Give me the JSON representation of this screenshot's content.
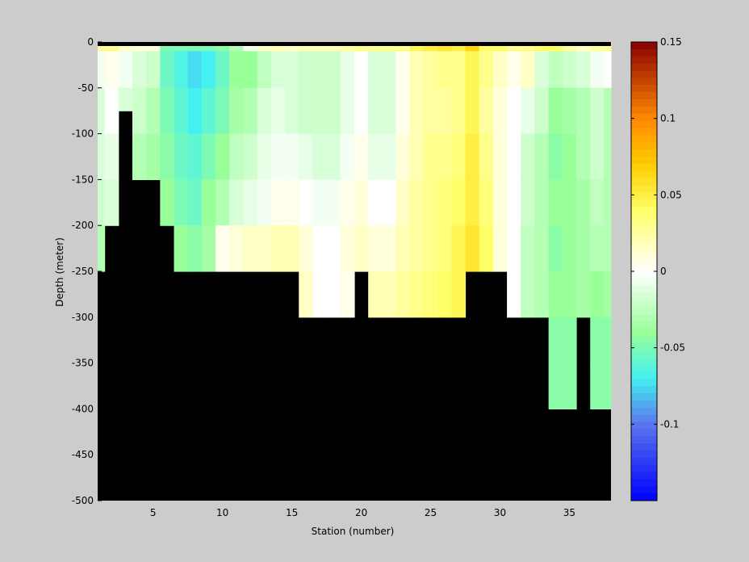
{
  "chart_data": {
    "type": "heatmap",
    "title": "",
    "xlabel": "Station (number)",
    "ylabel": "Depth (meter)",
    "xlim": [
      1,
      38
    ],
    "ylim": [
      -500,
      0
    ],
    "x_ticks": [
      5,
      10,
      15,
      20,
      25,
      30,
      35
    ],
    "y_ticks": [
      0,
      -50,
      -100,
      -150,
      -200,
      -250,
      -300,
      -350,
      -400,
      -450,
      -500
    ],
    "stations": [
      1,
      2,
      3,
      4,
      5,
      6,
      7,
      8,
      9,
      10,
      11,
      12,
      13,
      14,
      15,
      16,
      17,
      18,
      19,
      20,
      21,
      22,
      23,
      24,
      25,
      26,
      27,
      28,
      29,
      30,
      31,
      32,
      33,
      34,
      35,
      36,
      37,
      38
    ],
    "depth_levels": [
      0,
      -10,
      -50,
      -100,
      -150,
      -200,
      -250,
      -300,
      -350,
      -400
    ],
    "bottom_depth": [
      -250,
      -200,
      -75,
      -150,
      -150,
      -250,
      -250,
      -250,
      -250,
      -250,
      -250,
      -250,
      -250,
      -250,
      -300,
      -300,
      -300,
      -300,
      -300,
      -250,
      -300,
      -300,
      -300,
      -300,
      -300,
      -300,
      -300,
      -250,
      -250,
      -250,
      -300,
      -300,
      -300,
      -400,
      -400,
      -300,
      -400,
      -400
    ],
    "values": [
      [
        0.025,
        -0.005,
        -0.015,
        -0.015,
        -0.02,
        -0.03
      ],
      [
        0.03,
        0.005,
        0.0,
        -0.01,
        -0.015
      ],
      [
        0.015,
        -0.005,
        -0.015
      ],
      [
        0.01,
        -0.015,
        -0.02,
        -0.03
      ],
      [
        0.01,
        -0.02,
        -0.03,
        -0.035
      ],
      [
        -0.05,
        -0.055,
        -0.05,
        -0.045,
        -0.04
      ],
      [
        -0.05,
        -0.065,
        -0.06,
        -0.055,
        -0.05,
        -0.04
      ],
      [
        -0.05,
        -0.075,
        -0.07,
        -0.06,
        -0.055,
        -0.045
      ],
      [
        -0.05,
        -0.07,
        -0.06,
        -0.05,
        -0.04,
        -0.035
      ],
      [
        -0.045,
        -0.055,
        -0.05,
        -0.04,
        -0.03,
        0.005
      ],
      [
        -0.03,
        -0.04,
        -0.035,
        -0.025,
        -0.015,
        0.01
      ],
      [
        -0.005,
        -0.04,
        -0.03,
        -0.02,
        -0.01,
        0.015
      ],
      [
        0.015,
        -0.025,
        -0.015,
        -0.01,
        -0.005,
        0.015
      ],
      [
        0.02,
        -0.015,
        -0.01,
        -0.005,
        0.005,
        0.02
      ],
      [
        0.015,
        -0.015,
        -0.015,
        -0.005,
        0.005,
        0.02
      ],
      [
        0.02,
        -0.02,
        -0.02,
        -0.01,
        0.0,
        0.01,
        0.015
      ],
      [
        0.02,
        -0.02,
        -0.02,
        -0.015,
        -0.005,
        0.0,
        0.0
      ],
      [
        0.02,
        -0.02,
        -0.02,
        -0.015,
        -0.005,
        0.0,
        0.0
      ],
      [
        0.025,
        -0.01,
        -0.01,
        -0.005,
        0.005,
        0.01,
        0.005
      ],
      [
        0.03,
        0.0,
        0.0,
        0.005,
        0.01,
        0.015
      ],
      [
        0.03,
        -0.015,
        -0.015,
        -0.01,
        0.0,
        0.01,
        0.02
      ],
      [
        0.03,
        -0.015,
        -0.015,
        -0.01,
        0.0,
        0.01,
        0.02
      ],
      [
        0.03,
        0.005,
        0.005,
        0.01,
        0.015,
        0.02,
        0.025
      ],
      [
        0.045,
        0.02,
        0.02,
        0.02,
        0.025,
        0.025,
        0.03
      ],
      [
        0.05,
        0.025,
        0.025,
        0.03,
        0.03,
        0.03,
        0.035
      ],
      [
        0.055,
        0.03,
        0.025,
        0.03,
        0.035,
        0.035,
        0.04
      ],
      [
        0.05,
        0.03,
        0.03,
        0.035,
        0.04,
        0.045,
        0.045
      ],
      [
        0.065,
        0.045,
        0.045,
        0.05,
        0.05,
        0.055
      ],
      [
        0.04,
        0.03,
        0.025,
        0.03,
        0.035,
        0.04
      ],
      [
        0.04,
        0.015,
        0.01,
        0.01,
        0.01,
        0.01
      ],
      [
        0.03,
        0.005,
        0.0,
        0.0,
        0.0,
        0.0,
        0.0
      ],
      [
        0.03,
        0.015,
        -0.01,
        -0.02,
        -0.02,
        -0.025,
        -0.025
      ],
      [
        0.04,
        -0.015,
        -0.02,
        -0.03,
        -0.03,
        -0.03,
        -0.03
      ],
      [
        0.04,
        -0.025,
        -0.04,
        -0.045,
        -0.04,
        -0.045,
        -0.04,
        -0.045,
        -0.045
      ],
      [
        0.025,
        -0.02,
        -0.035,
        -0.04,
        -0.04,
        -0.04,
        -0.04,
        -0.045,
        -0.045
      ],
      [
        0.015,
        -0.015,
        -0.03,
        -0.03,
        -0.035,
        -0.035,
        -0.035
      ],
      [
        0.025,
        -0.005,
        -0.02,
        -0.02,
        -0.025,
        -0.03,
        -0.04,
        -0.045,
        -0.045
      ],
      [
        0.03,
        0.0,
        -0.03,
        -0.03,
        -0.03,
        -0.03,
        -0.035,
        -0.045,
        -0.045
      ]
    ],
    "surface_line": true,
    "colorbar": {
      "clim": [
        -0.15,
        0.15
      ],
      "ticks": [
        0.15,
        0.1,
        0.05,
        0,
        -0.05,
        -0.1
      ],
      "tick_labels": [
        "0.15",
        "0.1",
        "0.05",
        "0",
        "-0.05",
        "-0.1"
      ],
      "colormap": [
        [
          -0.15,
          "#0000ff"
        ],
        [
          -0.1,
          "#5a76ee"
        ],
        [
          -0.07,
          "#44f0f0"
        ],
        [
          -0.04,
          "#99ff99"
        ],
        [
          0.0,
          "#ffffff"
        ],
        [
          0.04,
          "#ffff66"
        ],
        [
          0.07,
          "#ffcc00"
        ],
        [
          0.1,
          "#ff8800"
        ],
        [
          0.15,
          "#880000"
        ]
      ]
    },
    "background_color": "#cccccc",
    "land_color": "#000000"
  }
}
